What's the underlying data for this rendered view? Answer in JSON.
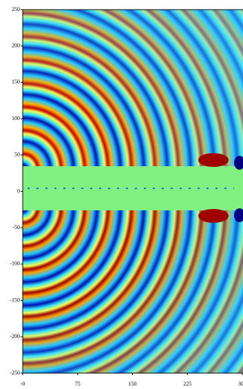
{
  "chart_data": {
    "type": "heatmap",
    "xlim": [
      0,
      300
    ],
    "ylim": [
      -250,
      250
    ],
    "xticks": [
      {
        "value": 0,
        "label": "-0"
      },
      75,
      150,
      225,
      300
    ],
    "yticks": [
      -250,
      -200,
      -150,
      -100,
      -50,
      0,
      50,
      100,
      150,
      200,
      250
    ]
  }
}
